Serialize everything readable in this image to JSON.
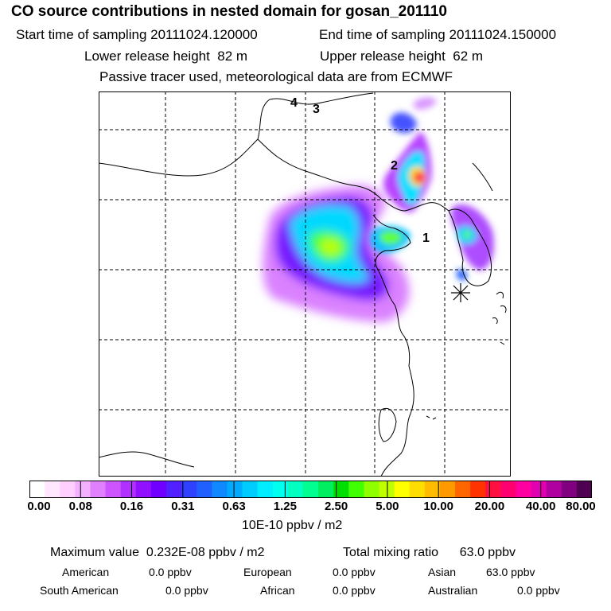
{
  "header": {
    "title": "CO  source contributions in nested domain for gosan_201110",
    "start_label": "Start time of sampling",
    "start_value": "20111024.120000",
    "end_label": "End time of sampling",
    "end_value": "20111024.150000",
    "lower_label": "Lower release height",
    "lower_value": "82 m",
    "upper_label": "Upper release height",
    "upper_value": "62 m",
    "note": "Passive tracer used, meteorological data are from ECMWF"
  },
  "map": {
    "labels": [
      "4",
      "3",
      "2",
      "1"
    ],
    "receptor_marker": "gosan-station"
  },
  "colorbar": {
    "ticks": [
      "0.00",
      "0.08",
      "0.16",
      "0.31",
      "0.63",
      "1.25",
      "2.50",
      "5.00",
      "10.00",
      "20.00",
      "40.00",
      "80.00"
    ],
    "units": "10E-10 ppbv / m2",
    "colors": [
      "#ffffff",
      "#ffe8ff",
      "#ffd0ff",
      "#f2b0ff",
      "#e080ff",
      "#cc55ff",
      "#b030ff",
      "#9010ff",
      "#7000ff",
      "#5020ff",
      "#3040ff",
      "#2060ff",
      "#1088ff",
      "#00aaff",
      "#00ccff",
      "#00eeff",
      "#00ffee",
      "#00ffc0",
      "#00ff90",
      "#00ee60",
      "#00dd00",
      "#40ff00",
      "#90ff00",
      "#c0ff00",
      "#ffff00",
      "#ffdd00",
      "#ffbb00",
      "#ff9900",
      "#ff6600",
      "#ff3300",
      "#ff1040",
      "#ff0070",
      "#ff00a0",
      "#e000b0",
      "#b000a0",
      "#800080",
      "#500050"
    ]
  },
  "stats": {
    "max_label": "Maximum value",
    "max_value": "0.232E-08 ppbv / m2",
    "total_label": "Total mixing ratio",
    "total_value": "63.0 ppbv",
    "regions": [
      {
        "name": "American",
        "value": "0.0 ppbv"
      },
      {
        "name": "European",
        "value": "0.0 ppbv"
      },
      {
        "name": "Asian",
        "value": "63.0 ppbv"
      },
      {
        "name": "South American",
        "value": "0.0 ppbv"
      },
      {
        "name": "African",
        "value": "0.0 ppbv"
      },
      {
        "name": "Australian",
        "value": "0.0 ppbv"
      }
    ]
  }
}
